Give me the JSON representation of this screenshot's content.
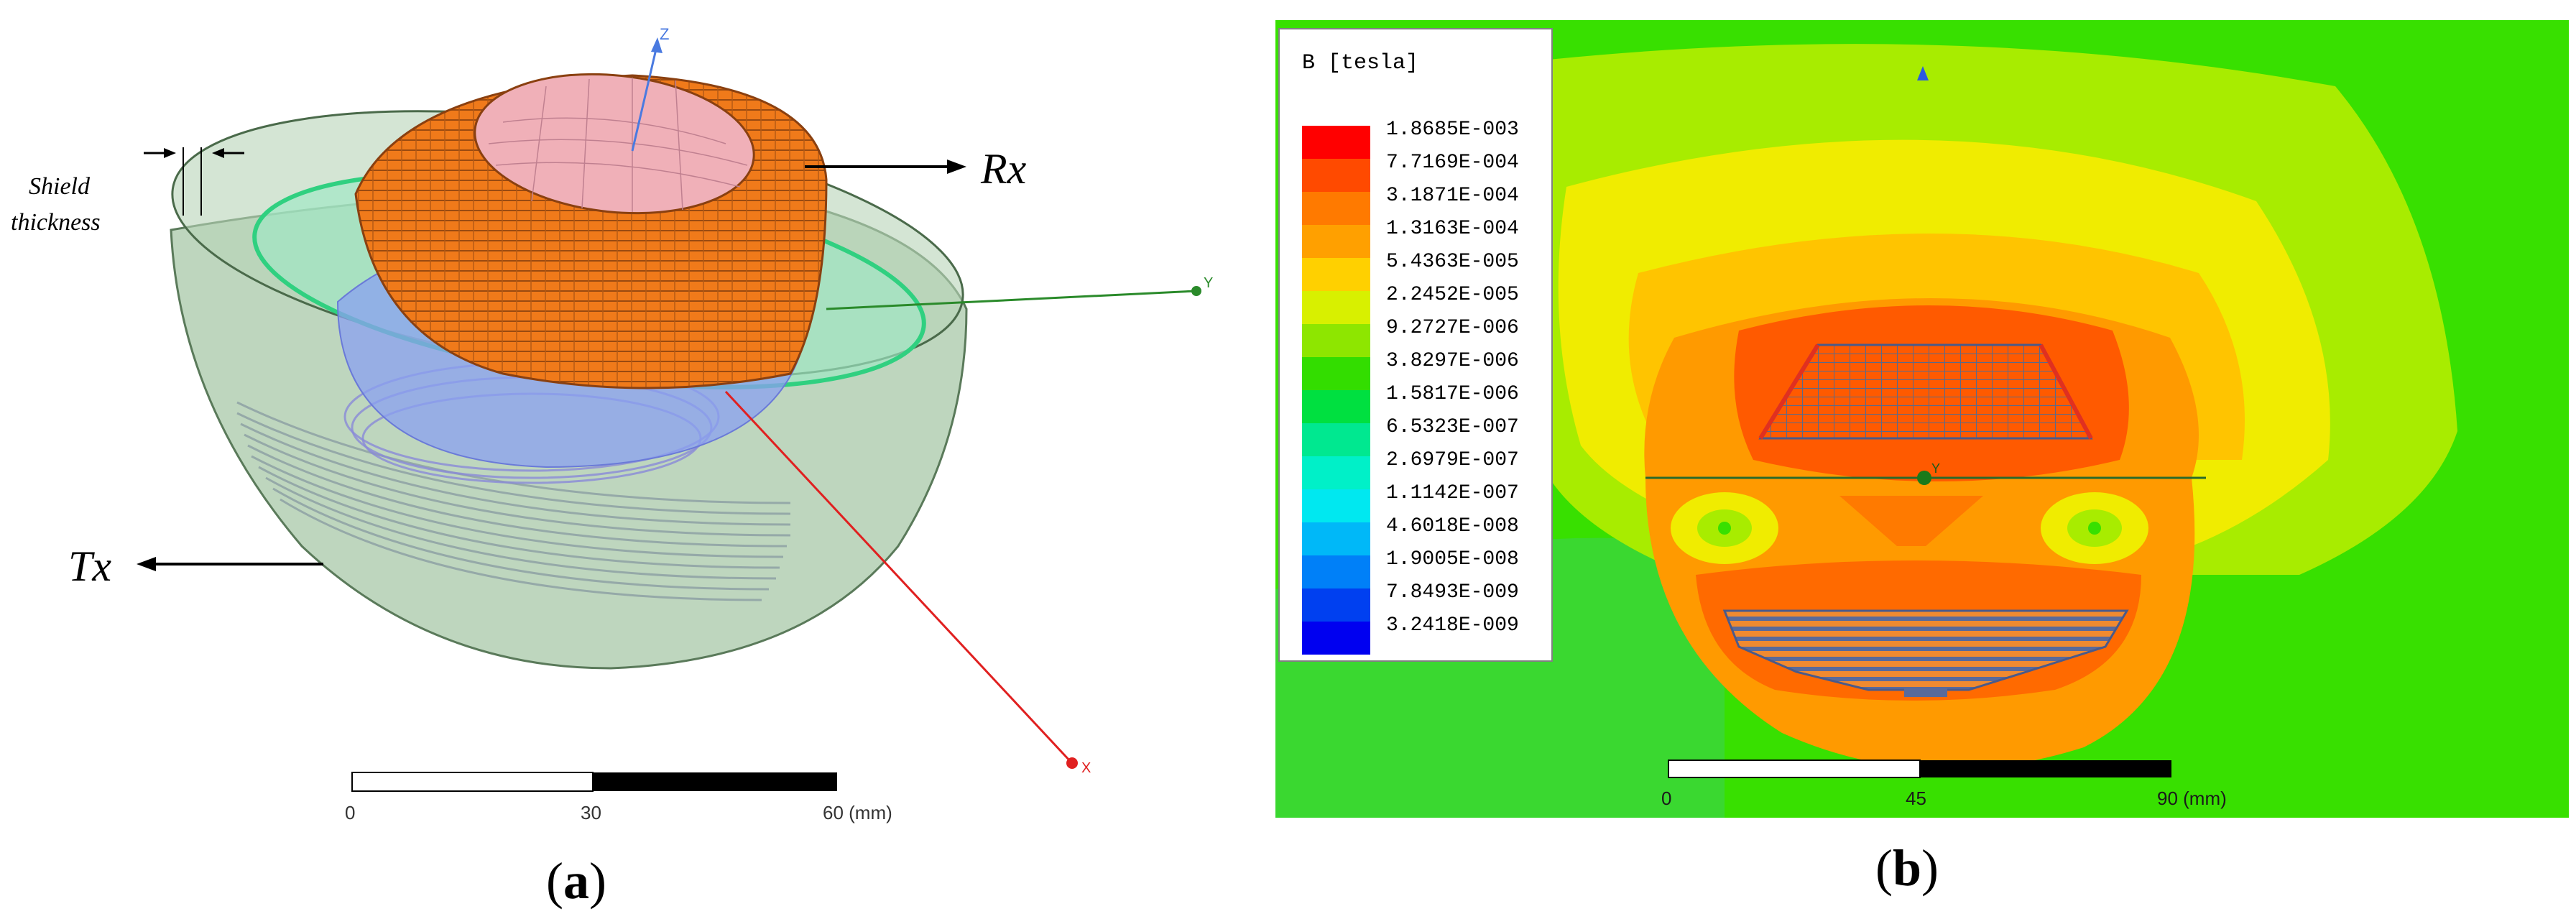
{
  "panel_a": {
    "label": "(a)",
    "label_letter": "a",
    "annotations": {
      "rx": "Rx",
      "tx": "Tx",
      "shield_line1": "Shield",
      "shield_line2": "thickness"
    },
    "axes": {
      "z": "Z",
      "y": "Y",
      "x": "X"
    },
    "scale": {
      "ticks": [
        "0",
        "30",
        "60 (mm)"
      ]
    }
  },
  "panel_b": {
    "label": "(b)",
    "label_letter": "b",
    "legend": {
      "title": "B [tesla]",
      "entries": [
        {
          "value": "1.8685E-003",
          "color": "#ff0000"
        },
        {
          "value": "7.7169E-004",
          "color": "#ff4a00"
        },
        {
          "value": "3.1871E-004",
          "color": "#ff7a00"
        },
        {
          "value": "1.3163E-004",
          "color": "#ffa000"
        },
        {
          "value": "5.4363E-005",
          "color": "#ffd000"
        },
        {
          "value": "2.2452E-005",
          "color": "#d8f000"
        },
        {
          "value": "9.2727E-006",
          "color": "#8ee600"
        },
        {
          "value": "3.8297E-006",
          "color": "#33dd00"
        },
        {
          "value": "1.5817E-006",
          "color": "#00e040"
        },
        {
          "value": "6.5323E-007",
          "color": "#00e890"
        },
        {
          "value": "2.6979E-007",
          "color": "#00f0c8"
        },
        {
          "value": "1.1142E-007",
          "color": "#00e8f0"
        },
        {
          "value": "4.6018E-008",
          "color": "#00b8f8"
        },
        {
          "value": "1.9005E-008",
          "color": "#0080f8"
        },
        {
          "value": "7.8493E-009",
          "color": "#0040f0"
        },
        {
          "value": "3.2418E-009",
          "color": "#0000f0"
        }
      ]
    },
    "axes": {
      "y": "Y"
    },
    "scale": {
      "ticks": [
        "0",
        "45",
        "90 (mm)"
      ]
    }
  }
}
